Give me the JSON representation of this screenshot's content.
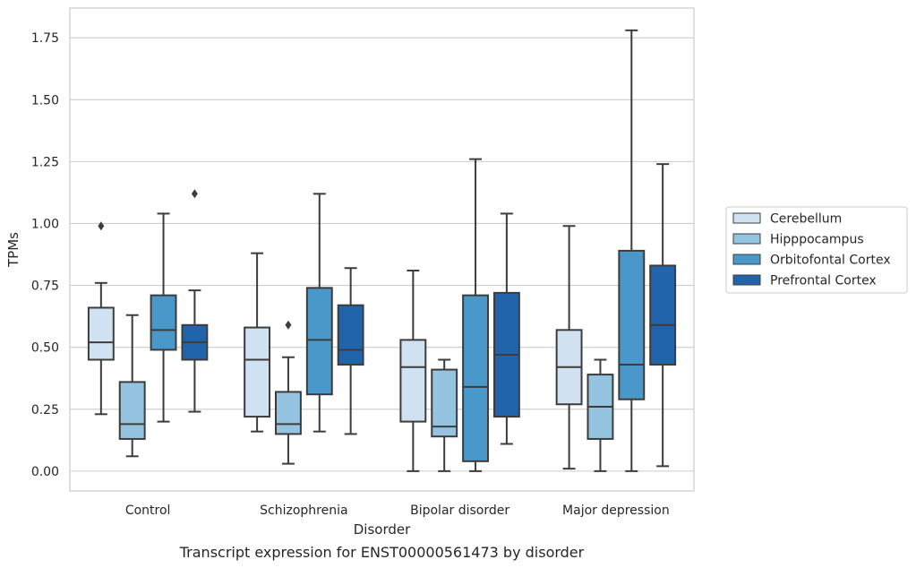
{
  "chart_data": {
    "type": "box",
    "title": "",
    "caption": "Transcript expression for ENST00000561473 by disorder",
    "xlabel": "Disorder",
    "ylabel": "TPMs",
    "ylim": [
      -0.08,
      1.87
    ],
    "yticks": [
      0.0,
      0.25,
      0.5,
      0.75,
      1.0,
      1.25,
      1.5,
      1.75
    ],
    "ytick_labels": [
      "0.00",
      "0.25",
      "0.50",
      "0.75",
      "1.00",
      "1.25",
      "1.50",
      "1.75"
    ],
    "grid": true,
    "legend_position": "right",
    "categories": [
      "Control",
      "Schizophrenia",
      "Bipolar disorder",
      "Major depression"
    ],
    "series": [
      {
        "name": "Cerebellum",
        "color": "#d0e1f2",
        "boxes": [
          {
            "whisker_low": 0.23,
            "q1": 0.45,
            "median": 0.52,
            "q3": 0.66,
            "whisker_high": 0.76,
            "outliers": [
              0.99
            ]
          },
          {
            "whisker_low": 0.16,
            "q1": 0.22,
            "median": 0.45,
            "q3": 0.58,
            "whisker_high": 0.88,
            "outliers": []
          },
          {
            "whisker_low": 0.0,
            "q1": 0.2,
            "median": 0.42,
            "q3": 0.53,
            "whisker_high": 0.81,
            "outliers": []
          },
          {
            "whisker_low": 0.01,
            "q1": 0.27,
            "median": 0.42,
            "q3": 0.57,
            "whisker_high": 0.99,
            "outliers": []
          }
        ]
      },
      {
        "name": "Hipppocampus",
        "color": "#94c4df",
        "boxes": [
          {
            "whisker_low": 0.06,
            "q1": 0.13,
            "median": 0.19,
            "q3": 0.36,
            "whisker_high": 0.63,
            "outliers": []
          },
          {
            "whisker_low": 0.03,
            "q1": 0.15,
            "median": 0.19,
            "q3": 0.32,
            "whisker_high": 0.46,
            "outliers": [
              0.59
            ]
          },
          {
            "whisker_low": 0.0,
            "q1": 0.14,
            "median": 0.18,
            "q3": 0.41,
            "whisker_high": 0.45,
            "outliers": []
          },
          {
            "whisker_low": 0.0,
            "q1": 0.13,
            "median": 0.26,
            "q3": 0.39,
            "whisker_high": 0.45,
            "outliers": []
          }
        ]
      },
      {
        "name": "Orbitofontal Cortex",
        "color": "#4a98c9",
        "boxes": [
          {
            "whisker_low": 0.2,
            "q1": 0.49,
            "median": 0.57,
            "q3": 0.71,
            "whisker_high": 1.04,
            "outliers": []
          },
          {
            "whisker_low": 0.16,
            "q1": 0.31,
            "median": 0.53,
            "q3": 0.74,
            "whisker_high": 1.12,
            "outliers": []
          },
          {
            "whisker_low": 0.0,
            "q1": 0.04,
            "median": 0.34,
            "q3": 0.71,
            "whisker_high": 1.26,
            "outliers": []
          },
          {
            "whisker_low": 0.0,
            "q1": 0.29,
            "median": 0.43,
            "q3": 0.89,
            "whisker_high": 1.78,
            "outliers": []
          }
        ]
      },
      {
        "name": "Prefrontal Cortex",
        "color": "#2164ab",
        "boxes": [
          {
            "whisker_low": 0.24,
            "q1": 0.45,
            "median": 0.52,
            "q3": 0.59,
            "whisker_high": 0.73,
            "outliers": [
              1.12
            ]
          },
          {
            "whisker_low": 0.15,
            "q1": 0.43,
            "median": 0.49,
            "q3": 0.67,
            "whisker_high": 0.82,
            "outliers": []
          },
          {
            "whisker_low": 0.11,
            "q1": 0.22,
            "median": 0.47,
            "q3": 0.72,
            "whisker_high": 1.04,
            "outliers": []
          },
          {
            "whisker_low": 0.02,
            "q1": 0.43,
            "median": 0.59,
            "q3": 0.83,
            "whisker_high": 1.24,
            "outliers": []
          }
        ]
      }
    ]
  }
}
